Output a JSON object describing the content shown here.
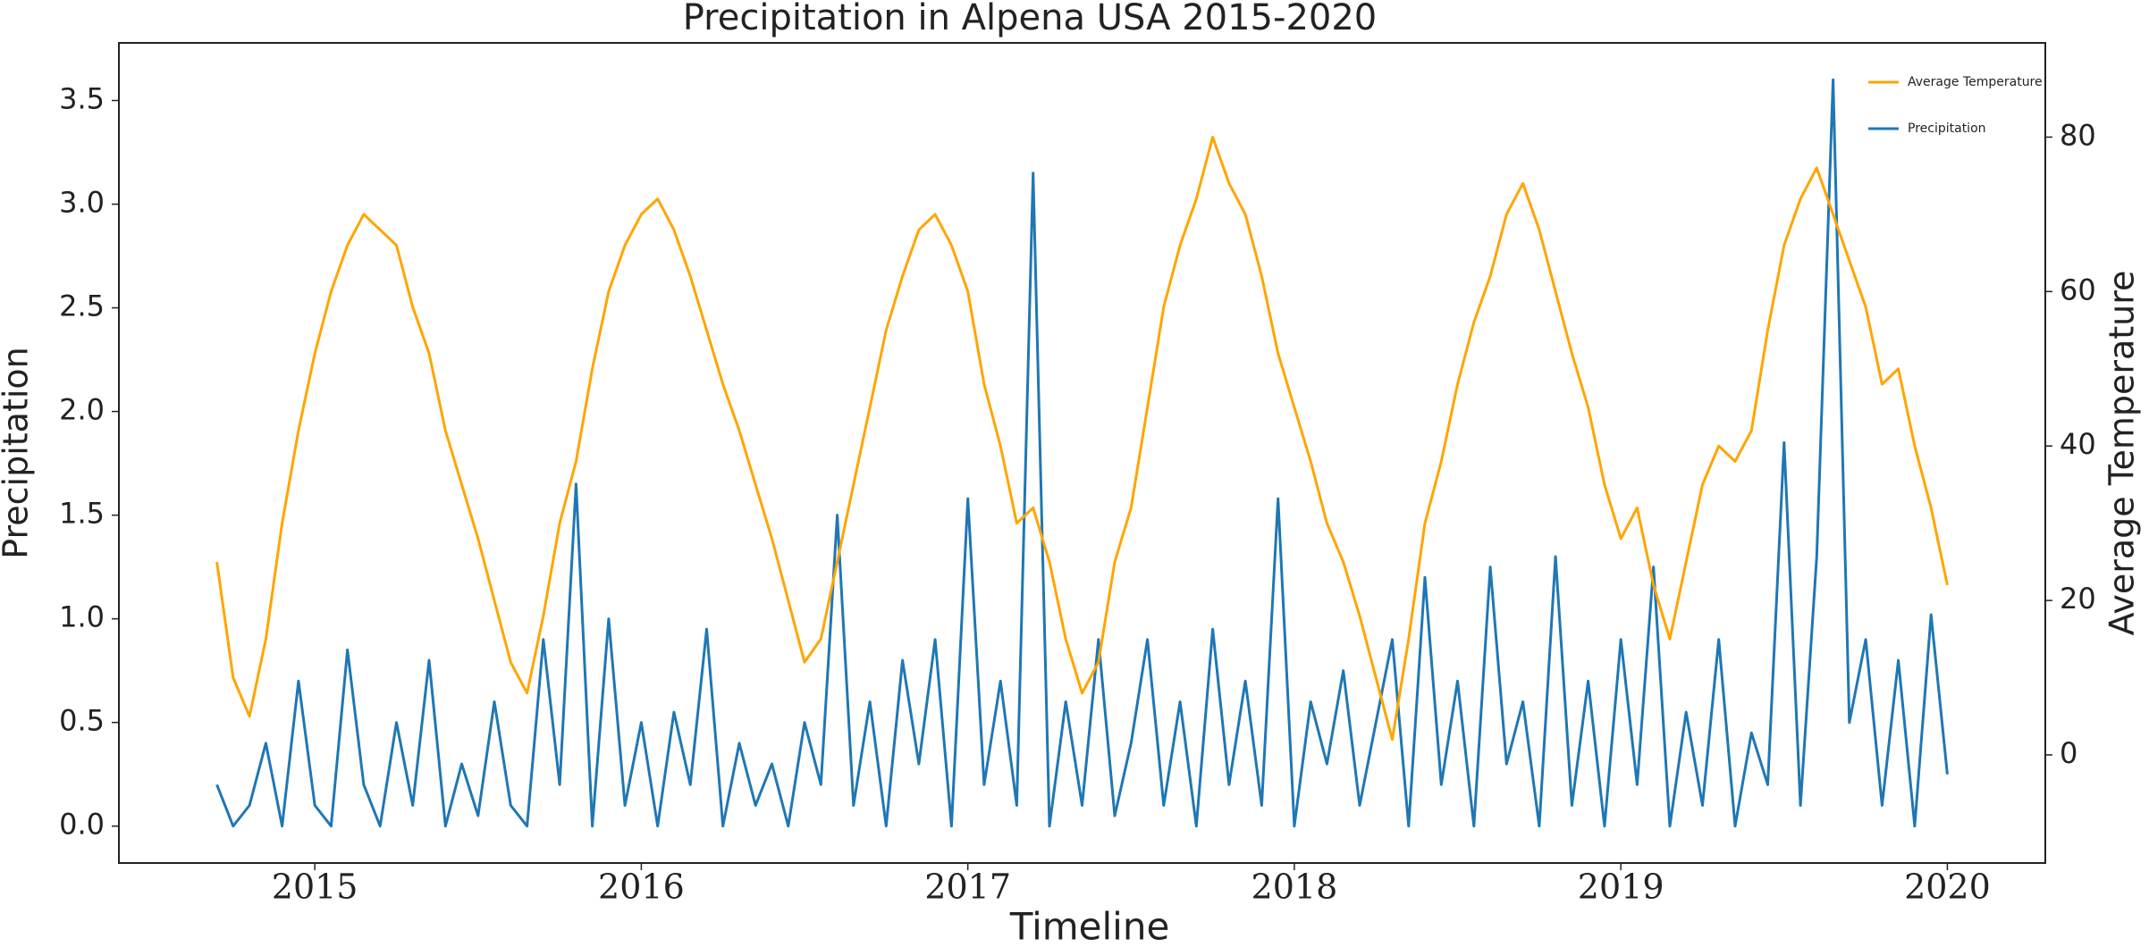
{
  "chart_data": {
    "type": "line",
    "title": "Precipitation in Alpena USA 2015-2020",
    "x_label": "Timeline",
    "y_label": "Precipitation",
    "y2_label": "Average Temperature",
    "legend": "upper right",
    "x": [
      2014.7,
      2014.75,
      2014.8,
      2014.85,
      2014.9,
      2014.95,
      2015.0,
      2015.05,
      2015.1,
      2015.15,
      2015.2,
      2015.25,
      2015.3,
      2015.35,
      2015.4,
      2015.45,
      2015.5,
      2015.55,
      2015.6,
      2015.65,
      2015.7,
      2015.75,
      2015.8,
      2015.85,
      2015.9,
      2015.95,
      2016.0,
      2016.05,
      2016.1,
      2016.15,
      2016.2,
      2016.25,
      2016.3,
      2016.35,
      2016.4,
      2016.45,
      2016.5,
      2016.55,
      2016.6,
      2016.65,
      2016.7,
      2016.75,
      2016.8,
      2016.85,
      2016.9,
      2016.95,
      2017.0,
      2017.05,
      2017.1,
      2017.15,
      2017.2,
      2017.25,
      2017.3,
      2017.35,
      2017.4,
      2017.45,
      2017.5,
      2017.55,
      2017.6,
      2017.65,
      2017.7,
      2017.75,
      2017.8,
      2017.85,
      2017.9,
      2017.95,
      2018.0,
      2018.05,
      2018.1,
      2018.15,
      2018.2,
      2018.25,
      2018.3,
      2018.35,
      2018.4,
      2018.45,
      2018.5,
      2018.55,
      2018.6,
      2018.65,
      2018.7,
      2018.75,
      2018.8,
      2018.85,
      2018.9,
      2018.95,
      2019.0,
      2019.05,
      2019.1,
      2019.15,
      2019.2,
      2019.25,
      2019.3,
      2019.35,
      2019.4,
      2019.45,
      2019.5,
      2019.55,
      2019.6,
      2019.65,
      2019.7,
      2019.75,
      2019.8,
      2019.85,
      2019.9,
      2019.95,
      2020.0
    ],
    "series": [
      {
        "name": "Average Temperature",
        "color": "#ffa500",
        "axis": "y2",
        "values": [
          25,
          10,
          5,
          15,
          30,
          42,
          52,
          60,
          66,
          70,
          68,
          66,
          58,
          52,
          42,
          35,
          28,
          20,
          12,
          8,
          18,
          30,
          38,
          50,
          60,
          66,
          70,
          72,
          68,
          62,
          55,
          48,
          42,
          35,
          28,
          20,
          12,
          15,
          25,
          35,
          45,
          55,
          62,
          68,
          70,
          66,
          60,
          48,
          40,
          30,
          32,
          25,
          15,
          8,
          12,
          25,
          32,
          45,
          58,
          66,
          72,
          80,
          74,
          70,
          62,
          52,
          45,
          38,
          30,
          25,
          18,
          10,
          2,
          15,
          30,
          38,
          48,
          56,
          62,
          70,
          74,
          68,
          60,
          52,
          45,
          35,
          28,
          32,
          22,
          15,
          25,
          35,
          40,
          38,
          42,
          55,
          66,
          72,
          76,
          70,
          64,
          58,
          48,
          50,
          40,
          32,
          22
        ]
      },
      {
        "name": "Precipitation",
        "color": "#1f77b4",
        "axis": "y",
        "values": [
          0.2,
          0,
          0.1,
          0.4,
          0,
          0.7,
          0.1,
          0,
          0.85,
          0.2,
          0,
          0.5,
          0.1,
          0.8,
          0,
          0.3,
          0.05,
          0.6,
          0.1,
          0,
          0.9,
          0.2,
          1.65,
          0,
          1.0,
          0.1,
          0.5,
          0,
          0.55,
          0.2,
          0.95,
          0,
          0.4,
          0.1,
          0.3,
          0,
          0.5,
          0.2,
          1.5,
          0.1,
          0.6,
          0,
          0.8,
          0.3,
          0.9,
          0,
          1.58,
          0.2,
          0.7,
          0.1,
          3.15,
          0,
          0.6,
          0.1,
          0.9,
          0.05,
          0.4,
          0.9,
          0.1,
          0.6,
          0,
          0.95,
          0.2,
          0.7,
          0.1,
          1.58,
          0,
          0.6,
          0.3,
          0.75,
          0.1,
          0.5,
          0.9,
          0,
          1.2,
          0.2,
          0.7,
          0,
          1.25,
          0.3,
          0.6,
          0,
          1.3,
          0.1,
          0.7,
          0,
          0.9,
          0.2,
          1.25,
          0,
          0.55,
          0.1,
          0.9,
          0,
          0.45,
          0.2,
          1.85,
          0.1,
          1.3,
          3.6,
          0.5,
          0.9,
          0.1,
          0.8,
          0,
          1.02,
          0.25
        ]
      }
    ],
    "xlim": [
      2014.4,
      2020.3
    ],
    "xticks": [
      2015,
      2016,
      2017,
      2018,
      2019,
      2020
    ],
    "ylim": [
      -0.178,
      3.778
    ],
    "yticks": [
      {
        "value": 0,
        "label": "0.0"
      },
      0.5,
      {
        "value": 1,
        "label": "1.0"
      },
      1.5,
      {
        "value": 2,
        "label": "2.0"
      },
      2.5,
      {
        "value": 3,
        "label": "3.0"
      },
      3.5
    ],
    "y2lim": [
      -14,
      92.2
    ],
    "y2ticks": [
      0,
      20,
      40,
      60,
      80
    ]
  }
}
